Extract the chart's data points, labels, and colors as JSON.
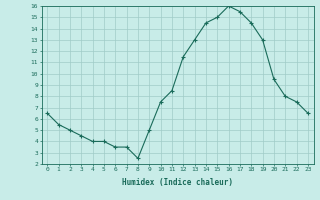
{
  "x": [
    0,
    1,
    2,
    3,
    4,
    5,
    6,
    7,
    8,
    9,
    10,
    11,
    12,
    13,
    14,
    15,
    16,
    17,
    18,
    19,
    20,
    21,
    22,
    23
  ],
  "y": [
    6.5,
    5.5,
    5.0,
    4.5,
    4.0,
    4.0,
    3.5,
    3.5,
    2.5,
    5.0,
    7.5,
    8.5,
    11.5,
    13.0,
    14.5,
    15.0,
    16.0,
    15.5,
    14.5,
    13.0,
    9.5,
    8.0,
    7.5,
    6.5
  ],
  "line_color": "#1a6b5a",
  "marker": "+",
  "markersize": 3,
  "linewidth": 0.8,
  "bg_color": "#c8ece8",
  "grid_color": "#a0ccc8",
  "xlabel": "Humidex (Indice chaleur)",
  "xlim": [
    -0.5,
    23.5
  ],
  "ylim": [
    2,
    16
  ],
  "yticks": [
    2,
    3,
    4,
    5,
    6,
    7,
    8,
    9,
    10,
    11,
    12,
    13,
    14,
    15,
    16
  ],
  "xticks": [
    0,
    1,
    2,
    3,
    4,
    5,
    6,
    7,
    8,
    9,
    10,
    11,
    12,
    13,
    14,
    15,
    16,
    17,
    18,
    19,
    20,
    21,
    22,
    23
  ],
  "tick_fontsize": 4.5,
  "label_fontsize": 5.5,
  "axis_color": "#1a6b5a",
  "spine_color": "#1a6b5a"
}
